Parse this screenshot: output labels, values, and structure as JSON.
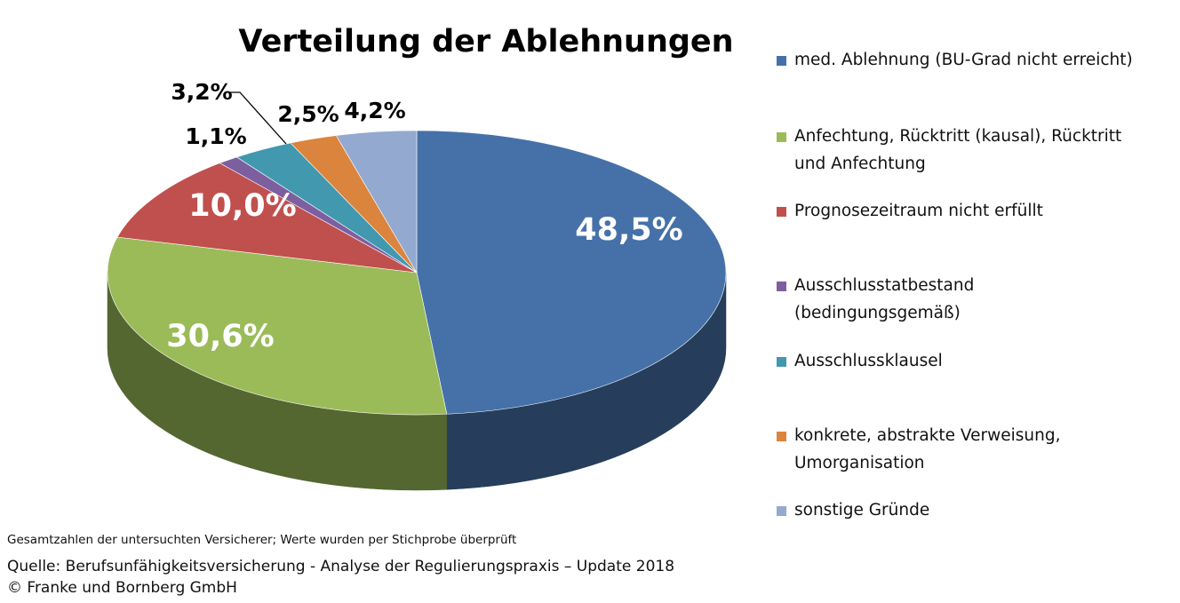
{
  "chart_data": {
    "type": "pie",
    "variant": "3d",
    "title": "Verteilung der Ablehnungen",
    "legend_position": "right",
    "slices": [
      {
        "label": "med. Ablehnung (BU-Grad nicht erreicht)",
        "label_lines": [
          "med. Ablehnung (BU-Grad nicht erreicht)"
        ],
        "value": 48.5,
        "value_label": "48,5%",
        "color": "#4571A8"
      },
      {
        "label": "Anfechtung, Rücktritt (kausal), Rücktritt und Anfechtung",
        "label_lines": [
          "Anfechtung, Rücktritt (kausal), Rücktritt",
          "und Anfechtung"
        ],
        "value": 30.6,
        "value_label": "30,6%",
        "color": "#9BBB59"
      },
      {
        "label": "Prognosezeitraum nicht erfüllt",
        "label_lines": [
          "Prognosezeitraum nicht erfüllt"
        ],
        "value": 10.0,
        "value_label": "10,0%",
        "color": "#C0504D"
      },
      {
        "label": "Ausschlusstatbestand (bedingungsgemäß)",
        "label_lines": [
          "Ausschlusstatbestand",
          "(bedingungsgemäß)"
        ],
        "value": 1.1,
        "value_label": "1,1%",
        "color": "#7D5FA0"
      },
      {
        "label": "Ausschlussklausel",
        "label_lines": [
          "Ausschlussklausel"
        ],
        "value": 3.2,
        "value_label": "3,2%",
        "color": "#4198AF"
      },
      {
        "label": "konkrete, abstrakte Verweisung, Umorganisation",
        "label_lines": [
          "konkrete, abstrakte Verweisung,",
          "Umorganisation"
        ],
        "value": 2.5,
        "value_label": "2,5%",
        "color": "#DB843D"
      },
      {
        "label": "sonstige Gründe",
        "label_lines": [
          "sonstige Gründe"
        ],
        "value": 4.2,
        "value_label": "4,2%",
        "color": "#93A9CF"
      }
    ]
  },
  "footer": {
    "note": "Gesamtzahlen der untersuchten Versicherer; Werte wurden per Stichprobe überprüft",
    "source": "Quelle: Berufsunfähigkeitsversicherung - Analyse der Regulierungspraxis – Update 2018",
    "copyright": "© Franke und Bornberg GmbH"
  }
}
